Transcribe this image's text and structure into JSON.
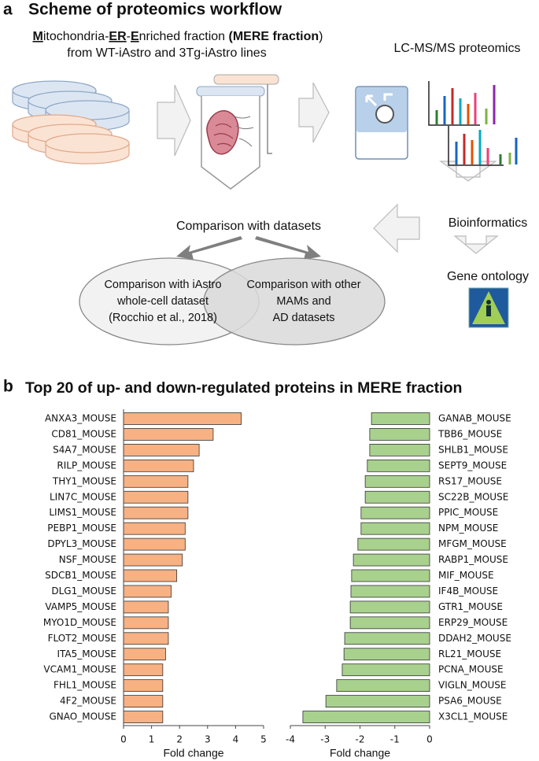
{
  "scheme": {
    "panel": "a",
    "title": "Scheme of proteomics workflow",
    "source_line1": [
      {
        "text": "M",
        "bold": true,
        "underline": true
      },
      {
        "text": "itochondria-",
        "bold": false,
        "underline": false
      },
      {
        "text": "ER",
        "bold": true,
        "underline": true
      },
      {
        "text": "-",
        "bold": false,
        "underline": false
      },
      {
        "text": "E",
        "bold": true,
        "underline": true
      },
      {
        "text": "nriched fraction ",
        "bold": false,
        "underline": false
      },
      {
        "text": "(MERE fraction",
        "bold": true,
        "underline": false
      },
      {
        "text": ")",
        "bold": false,
        "underline": false
      }
    ],
    "source_line2": "from WT-iAstro and 3Tg-iAstro lines",
    "proteomics": "LC-MS/MS proteomics",
    "bioinformatics": "Bioinformatics",
    "gene_ontology": "Gene ontology",
    "comparison": "Comparison with datasets",
    "venn_left": [
      "Comparison with iAstro",
      "whole-cell dataset",
      "(Rocchio et al., 2018)"
    ],
    "venn_right": [
      "Comparison with other",
      "MAMs and",
      "AD datasets"
    ]
  },
  "panel_b": {
    "panel": "b",
    "title": "Top 20 of up- and down-regulated proteins in MERE fraction"
  },
  "chart_data": [
    {
      "type": "bar",
      "orientation": "horizontal",
      "categories": [
        "ANXA3_MOUSE",
        "CD81_MOUSE",
        "S4A7_MOUSE",
        "RILP_MOUSE",
        "THY1_MOUSE",
        "LIN7C_MOUSE",
        "LIMS1_MOUSE",
        "PEBP1_MOUSE",
        "DPYL3_MOUSE",
        "NSF_MOUSE",
        "SDCB1_MOUSE",
        "DLG1_MOUSE",
        "VAMP5_MOUSE",
        "MYO1D_MOUSE",
        "FLOT2_MOUSE",
        "ITA5_MOUSE",
        "VCAM1_MOUSE",
        "FHL1_MOUSE",
        "4F2_MOUSE",
        "GNAO_MOUSE"
      ],
      "values": [
        4.2,
        3.2,
        2.7,
        2.5,
        2.3,
        2.3,
        2.3,
        2.2,
        2.2,
        2.1,
        1.9,
        1.7,
        1.6,
        1.6,
        1.6,
        1.5,
        1.4,
        1.4,
        1.4,
        1.4
      ],
      "color": "#f7b183",
      "xlim": [
        0,
        5
      ],
      "xticks": [
        0,
        1,
        2,
        3,
        4,
        5
      ],
      "xlabel": "Fold change"
    },
    {
      "type": "bar",
      "orientation": "horizontal",
      "categories": [
        "GANAB_MOUSE",
        "TBB6_MOUSE",
        "SHLB1_MOUSE",
        "SEPT9_MOUSE",
        "RS17_MOUSE",
        "SC22B_MOUSE",
        "PPIC_MOUSE",
        "NPM_MOUSE",
        "MFGM_MOUSE",
        "RABP1_MOUSE",
        "MIF_MOUSE",
        "IF4B_MOUSE",
        "GTR1_MOUSE",
        "ERP29_MOUSE",
        "DDAH2_MOUSE",
        "RL21_MOUSE",
        "PCNA_MOUSE",
        "VIGLN_MOUSE",
        "PSA6_MOUSE",
        "X3CL1_MOUSE"
      ],
      "values": [
        -1.67,
        -1.72,
        -1.72,
        -1.79,
        -1.85,
        -1.85,
        -1.97,
        -1.97,
        -2.06,
        -2.19,
        -2.24,
        -2.26,
        -2.28,
        -2.28,
        -2.44,
        -2.46,
        -2.51,
        -2.67,
        -2.98,
        -3.64
      ],
      "color": "#a9d18e",
      "xlim": [
        -4,
        0
      ],
      "xticks": [
        -4,
        -3,
        -2,
        -1,
        0
      ],
      "xlabel": "Fold change"
    }
  ]
}
